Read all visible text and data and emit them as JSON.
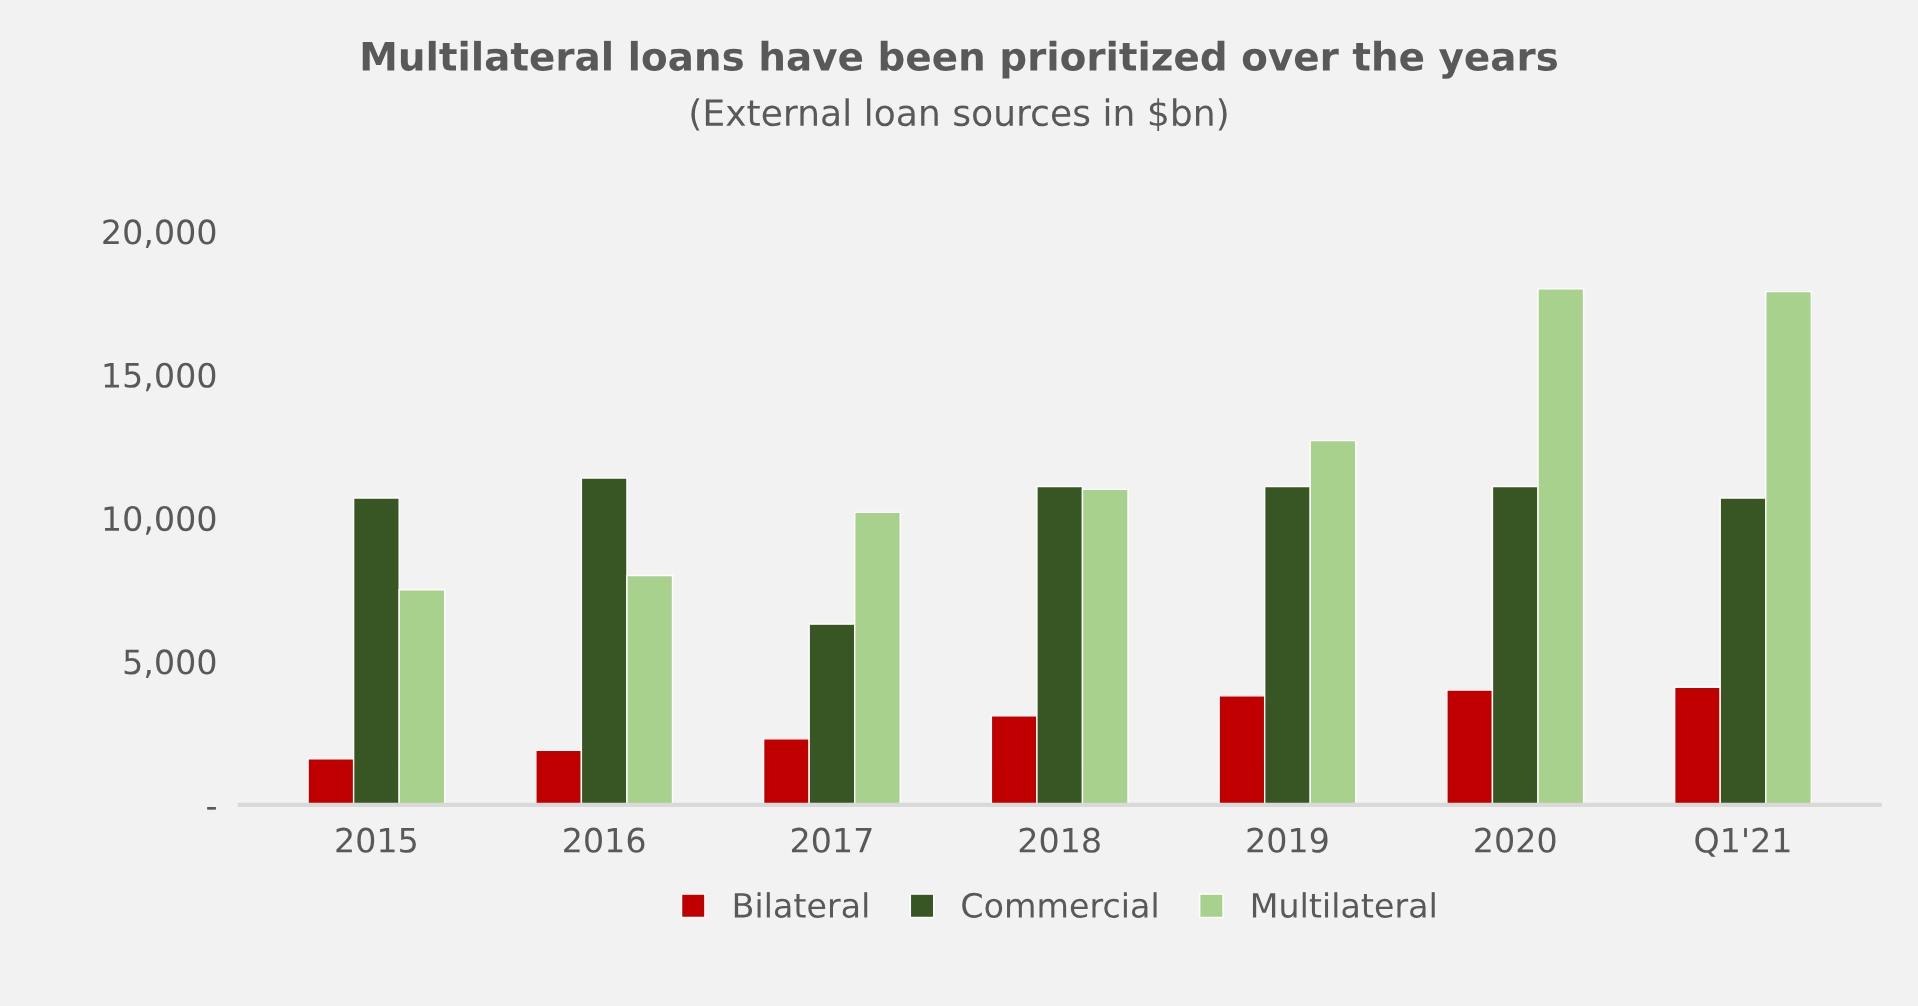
{
  "chart_data": {
    "type": "bar",
    "title": "Multilateral loans have been prioritized over the years",
    "subtitle": "(External loan sources in $bn)",
    "categories": [
      "2015",
      "2016",
      "2017",
      "2018",
      "2019",
      "2020",
      "Q1'21"
    ],
    "series": [
      {
        "name": "Bilateral",
        "color": "#c00000",
        "values": [
          1600,
          1900,
          2300,
          3100,
          3800,
          4000,
          4100
        ]
      },
      {
        "name": "Commercial",
        "color": "#375623",
        "values": [
          10700,
          11400,
          6300,
          11100,
          11100,
          11100,
          10700
        ]
      },
      {
        "name": "Multilateral",
        "color": "#a9d18e",
        "values": [
          7500,
          8000,
          10200,
          11000,
          12700,
          18000,
          17900
        ]
      }
    ],
    "ylim": [
      0,
      20000
    ],
    "yticks": [
      {
        "value": 0,
        "label": "-"
      },
      {
        "value": 5000,
        "label": "5,000"
      },
      {
        "value": 10000,
        "label": "10,000"
      },
      {
        "value": 15000,
        "label": "15,000"
      },
      {
        "value": 20000,
        "label": "20,000"
      }
    ],
    "grid": false,
    "legend": "bottom"
  }
}
